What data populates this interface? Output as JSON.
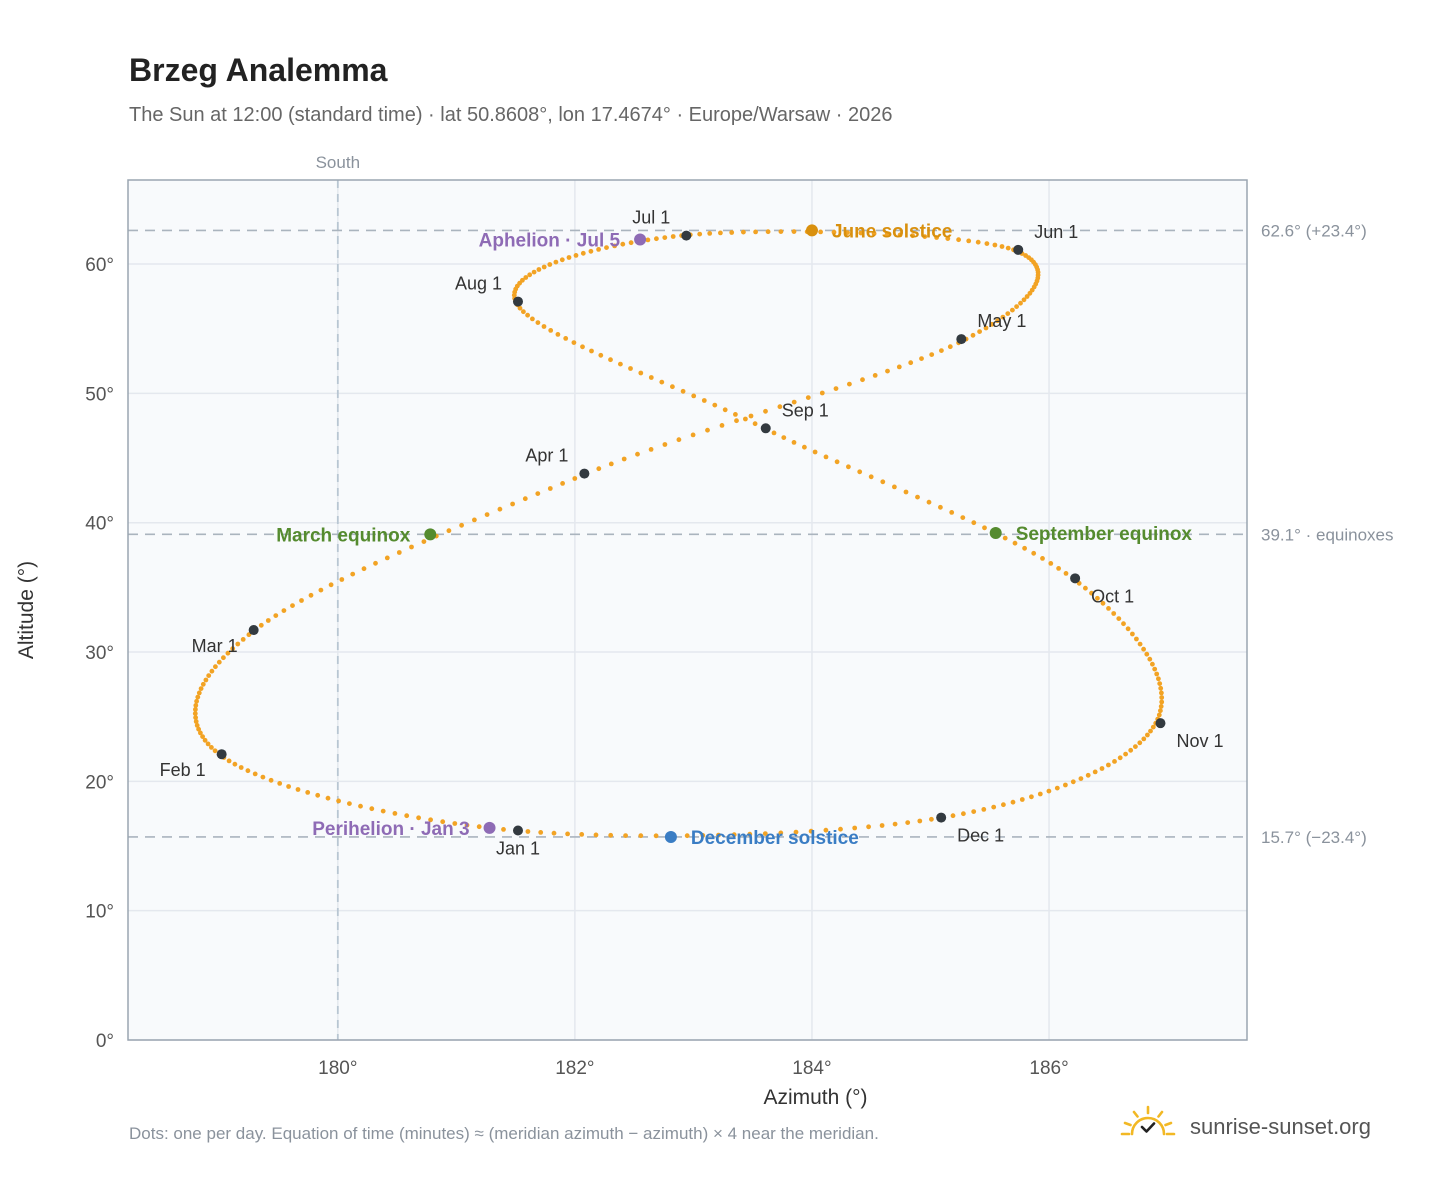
{
  "title": "Brzeg Analemma",
  "subtitle": "The Sun at 12:00 (standard time) · lat 50.8608°, lon 17.4674° · Europe/Warsaw · 2026",
  "footnote": "Dots: one per day. Equation of time (minutes) ≈ (meridian azimuth − azimuth) × 4 near the meridian.",
  "brand": {
    "name": "sunrise-sunset.org",
    "logo_icon": "sun-check-icon"
  },
  "colors": {
    "path": "#f2a324",
    "month_dot": "#333a40",
    "solstice_june": "#d9900e",
    "solstice_december": "#3a7dc4",
    "equinox": "#558b2f",
    "apsis": "#8e6bb5",
    "plot_bg": "#f8fafc",
    "grid": "#e4e8ee",
    "ref_line": "#aab4be"
  },
  "chart_data": {
    "type": "scatter",
    "xlabel": "Azimuth (°)",
    "ylabel": "Altitude (°)",
    "xlim": [
      178.23,
      187.67
    ],
    "ylim": [
      0,
      66.5
    ],
    "xticks": [
      180,
      182,
      184,
      186
    ],
    "yticks": [
      0,
      10,
      20,
      30,
      40,
      50,
      60
    ],
    "x_tick_labels": [
      "180°",
      "182°",
      "184°",
      "186°"
    ],
    "y_tick_labels": [
      "0°",
      "10°",
      "20°",
      "30°",
      "40°",
      "50°",
      "60°"
    ],
    "grid": true,
    "meridian": {
      "azimuth": 180,
      "label": "South"
    },
    "reference_lines": [
      {
        "altitude": 62.6,
        "label": "62.6° (+23.4°)"
      },
      {
        "altitude": 39.1,
        "label": "39.1° · equinoxes"
      },
      {
        "altitude": 15.7,
        "label": "15.7° (−23.4°)"
      }
    ],
    "analemma_daily_positions": [
      {
        "date": "Jan 1",
        "azimuth": 181.5,
        "altitude": 16.2
      },
      {
        "date": "Feb 1",
        "azimuth": 179.0,
        "altitude": 22.1
      },
      {
        "date": "Mar 1",
        "azimuth": 179.3,
        "altitude": 31.7
      },
      {
        "date": "Apr 1",
        "azimuth": 182.1,
        "altitude": 43.8
      },
      {
        "date": "May 1",
        "azimuth": 185.3,
        "altitude": 54.2
      },
      {
        "date": "Jun 1",
        "azimuth": 185.7,
        "altitude": 61.1
      },
      {
        "date": "Jul 1",
        "azimuth": 182.9,
        "altitude": 62.2
      },
      {
        "date": "Aug 1",
        "azimuth": 181.5,
        "altitude": 57.1
      },
      {
        "date": "Sep 1",
        "azimuth": 183.6,
        "altitude": 47.3
      },
      {
        "date": "Oct 1",
        "azimuth": 186.2,
        "altitude": 35.7
      },
      {
        "date": "Nov 1",
        "azimuth": 186.9,
        "altitude": 24.5
      },
      {
        "date": "Dec 1",
        "azimuth": 185.1,
        "altitude": 17.2
      },
      {
        "date": "Jan 1",
        "azimuth": 181.5,
        "altitude": 16.2
      }
    ],
    "month_markers": [
      {
        "label": "Jan 1",
        "azimuth": 181.52,
        "altitude": 16.2,
        "pos": "below"
      },
      {
        "label": "Feb 1",
        "azimuth": 179.02,
        "altitude": 22.1,
        "pos": "below-left"
      },
      {
        "label": "Mar 1",
        "azimuth": 179.29,
        "altitude": 31.7,
        "pos": "below-left"
      },
      {
        "label": "Apr 1",
        "azimuth": 182.08,
        "altitude": 43.8,
        "pos": "above-left"
      },
      {
        "label": "May 1",
        "azimuth": 185.26,
        "altitude": 54.2,
        "pos": "above-right"
      },
      {
        "label": "Jun 1",
        "azimuth": 185.74,
        "altitude": 61.1,
        "pos": "above-right"
      },
      {
        "label": "Jul 1",
        "azimuth": 182.94,
        "altitude": 62.2,
        "pos": "above-left"
      },
      {
        "label": "Aug 1",
        "azimuth": 181.52,
        "altitude": 57.1,
        "pos": "above-left"
      },
      {
        "label": "Sep 1",
        "azimuth": 183.61,
        "altitude": 47.3,
        "pos": "above-right"
      },
      {
        "label": "Oct 1",
        "azimuth": 186.22,
        "altitude": 35.7,
        "pos": "below-right"
      },
      {
        "label": "Nov 1",
        "azimuth": 186.94,
        "altitude": 24.5,
        "pos": "below-right"
      },
      {
        "label": "Dec 1",
        "azimuth": 185.09,
        "altitude": 17.2,
        "pos": "below-right"
      }
    ],
    "events": [
      {
        "label": "June solstice",
        "azimuth": 184.0,
        "altitude": 62.6,
        "kind": "solstice_june",
        "side": "right"
      },
      {
        "label": "December solstice",
        "azimuth": 182.81,
        "altitude": 15.7,
        "kind": "solstice_december",
        "side": "right"
      },
      {
        "label": "March equinox",
        "azimuth": 180.78,
        "altitude": 39.1,
        "kind": "equinox",
        "side": "left"
      },
      {
        "label": "September equinox",
        "azimuth": 185.55,
        "altitude": 39.2,
        "kind": "equinox",
        "side": "right"
      },
      {
        "label": "Aphelion · Jul 5",
        "azimuth": 182.55,
        "altitude": 61.9,
        "kind": "apsis",
        "side": "left"
      },
      {
        "label": "Perihelion · Jan 3",
        "azimuth": 181.28,
        "altitude": 16.4,
        "kind": "apsis",
        "side": "left"
      }
    ]
  }
}
